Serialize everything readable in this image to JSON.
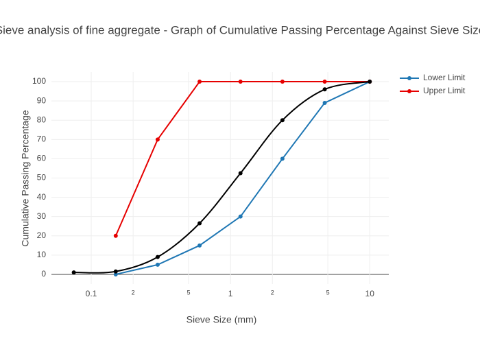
{
  "chart_data": {
    "type": "line",
    "title": "Sieve analysis of fine aggregate - Graph of Cumulative Passing Percentage Against Sieve Size",
    "x_label": "Sieve Size (mm)",
    "y_label": "Cumulative Passing Percentage",
    "xscale": "log",
    "grid": true,
    "legend": "right",
    "xlim": [
      0.0518,
      13.7
    ],
    "ylim": [
      -5,
      105
    ],
    "xticks": [
      0.1,
      {
        "value": 0.2,
        "label": "2"
      },
      {
        "value": 0.5,
        "label": "5"
      },
      1,
      {
        "value": 2,
        "label": "2"
      },
      {
        "value": 5,
        "label": "5"
      },
      10
    ],
    "yticks": [
      0,
      10,
      20,
      30,
      40,
      50,
      60,
      70,
      80,
      90,
      100
    ],
    "series": [
      {
        "name": "Lower Limit",
        "color": "#1f77b4",
        "x": [
          0.15,
          0.3,
          0.6,
          1.18,
          2.36,
          4.75,
          10
        ],
        "values": [
          0,
          5,
          15,
          30,
          60,
          89,
          100
        ]
      },
      {
        "name": "Upper Limit",
        "color": "#e60000",
        "x": [
          0.15,
          0.3,
          0.6,
          1.18,
          2.36,
          4.75,
          10
        ],
        "values": [
          20,
          70,
          100,
          100,
          100,
          100,
          100
        ]
      },
      {
        "color": "#000000",
        "smooth": true,
        "x": [
          0.075,
          0.15,
          0.3,
          0.6,
          1.18,
          2.36,
          4.75,
          10
        ],
        "values": [
          1,
          1.5,
          9,
          26.5,
          52.5,
          80,
          96,
          100
        ]
      }
    ]
  }
}
